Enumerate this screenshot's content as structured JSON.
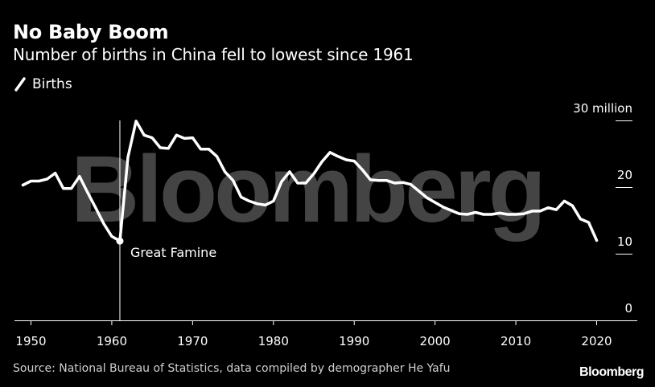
{
  "header": {
    "title": "No Baby Boom",
    "subtitle": "Number of births in China fell to lowest since 1961"
  },
  "footer": {
    "source": "Source: National Bureau of Statistics, data compiled by demographer He Yafu",
    "brand": "Bloomberg"
  },
  "watermark": "Bloomberg",
  "colors": {
    "background": "#000000",
    "line": "#ffffff",
    "gridline": "#ffffff",
    "watermark": "#444444"
  },
  "chart_data": {
    "type": "line",
    "title": "No Baby Boom",
    "subtitle": "Number of births in China fell to lowest since 1961",
    "legend": {
      "placement": "top-left",
      "entries": [
        "Births"
      ]
    },
    "series": [
      {
        "name": "Births",
        "unit": "million",
        "x": [
          1949,
          1950,
          1951,
          1952,
          1953,
          1954,
          1955,
          1956,
          1957,
          1958,
          1959,
          1960,
          1961,
          1962,
          1963,
          1964,
          1965,
          1966,
          1967,
          1968,
          1969,
          1970,
          1971,
          1972,
          1973,
          1974,
          1975,
          1976,
          1977,
          1978,
          1979,
          1980,
          1981,
          1982,
          1983,
          1984,
          1985,
          1986,
          1987,
          1988,
          1989,
          1990,
          1991,
          1992,
          1993,
          1994,
          1995,
          1996,
          1997,
          1998,
          1999,
          2000,
          2001,
          2002,
          2003,
          2004,
          2005,
          2006,
          2007,
          2008,
          2009,
          2010,
          2011,
          2012,
          2013,
          2014,
          2015,
          2016,
          2017,
          2018,
          2019,
          2020
        ],
        "values": [
          20.3,
          20.9,
          20.9,
          21.2,
          22.1,
          19.8,
          19.8,
          21.6,
          19.2,
          16.9,
          14.5,
          12.6,
          11.9,
          24.5,
          29.9,
          27.8,
          27.4,
          25.9,
          25.8,
          27.8,
          27.3,
          27.4,
          25.7,
          25.7,
          24.6,
          22.3,
          21.0,
          18.5,
          17.9,
          17.5,
          17.3,
          17.9,
          20.8,
          22.3,
          20.6,
          20.6,
          22.0,
          23.8,
          25.2,
          24.6,
          24.1,
          23.9,
          22.6,
          21.1,
          21.0,
          21.0,
          20.6,
          20.7,
          20.4,
          19.4,
          18.4,
          17.7,
          17.0,
          16.5,
          16.0,
          15.9,
          16.2,
          15.9,
          15.9,
          16.1,
          15.9,
          15.9,
          16.0,
          16.4,
          16.4,
          16.9,
          16.6,
          17.9,
          17.2,
          15.2,
          14.7,
          12.0
        ]
      }
    ],
    "xlim": [
      1949,
      2020
    ],
    "ylim": [
      0,
      30
    ],
    "x_ticks": [
      1950,
      1960,
      1970,
      1980,
      1990,
      2000,
      2010,
      2020
    ],
    "y_ticks": [
      0,
      10,
      20,
      30
    ],
    "y_tick_labels": [
      "0",
      "10",
      "20",
      "30 million"
    ],
    "grid": "short horizontal tick marks at right",
    "annotations": [
      {
        "text": "Great Famine",
        "x": 1961,
        "y": 11.9,
        "marker": "dot",
        "vertical_line": true
      }
    ]
  }
}
